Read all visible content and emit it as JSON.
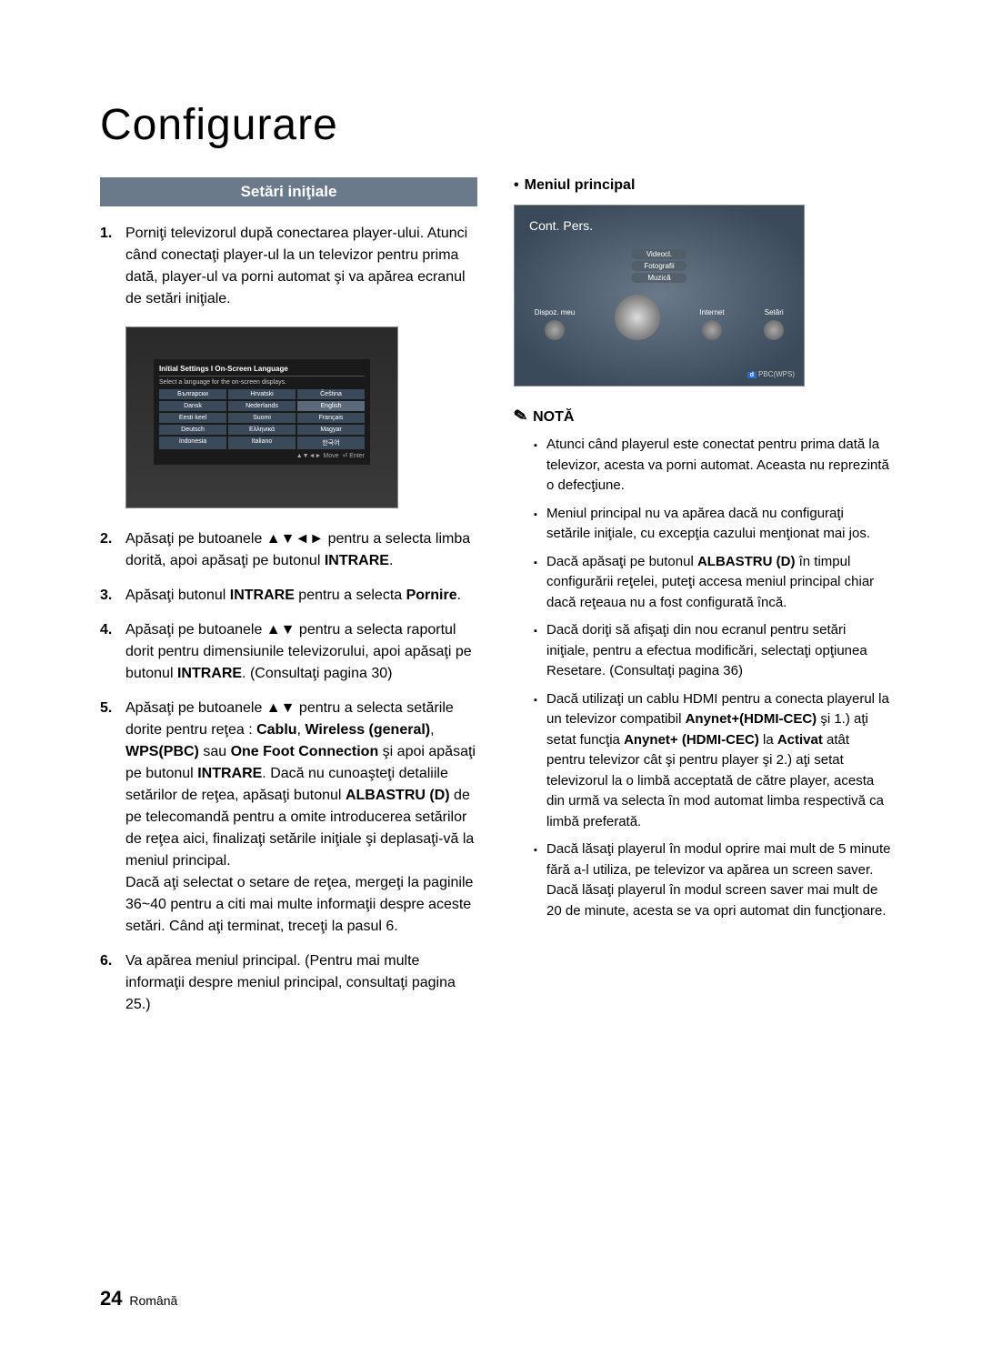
{
  "page": {
    "title": "Configurare",
    "number": "24",
    "language": "Română"
  },
  "section": {
    "heading": "Setări iniţiale"
  },
  "steps": {
    "s1": {
      "num": "1.",
      "text": "Porniţi televizorul după conectarea player-ului. Atunci când conectaţi player-ul la un televizor pentru prima dată, player-ul va porni automat şi va apărea ecranul de setări iniţiale."
    },
    "s2": {
      "num": "2.",
      "pre": "Apăsaţi pe butoanele ",
      "arrows": "▲▼◄►",
      "mid": " pentru a selecta limba dorită, apoi apăsaţi pe butonul ",
      "btn": "INTRARE",
      "post": "."
    },
    "s3": {
      "num": "3.",
      "pre": "Apăsaţi butonul ",
      "btn": "INTRARE",
      "mid": " pentru a selecta ",
      "opt": "Pornire",
      "post": "."
    },
    "s4": {
      "num": "4.",
      "pre": "Apăsaţi pe butoanele ",
      "arrows": "▲▼",
      "mid": " pentru a selecta raportul dorit pentru dimensiunile televizorului, apoi apăsaţi pe butonul ",
      "btn": "INTRARE",
      "post": ". (Consultaţi pagina 30)"
    },
    "s5": {
      "num": "5.",
      "pre": "Apăsaţi pe butoanele ",
      "arrows": "▲▼",
      "mid1": " pentru a selecta setările dorite pentru reţea : ",
      "opt1": "Cablu",
      "opt2": "Wireless (general)",
      "opt3": "WPS(PBC)",
      "or": " sau ",
      "opt4": "One Foot Connection",
      "mid2": " şi apoi apăsaţi pe butonul ",
      "btn1": "INTRARE",
      "mid3": ". Dacă nu cunoaşteţi detaliile setărilor de reţea, apăsaţi butonul ",
      "btn2": "ALBASTRU (D)",
      "mid4": " de pe telecomandă pentru a omite introducerea setărilor de reţea aici, finalizaţi setările iniţiale şi deplasaţi-vă la meniul principal.",
      "para2": "Dacă aţi selectat o setare de reţea, mergeţi la paginile 36~40 pentru a citi mai multe informaţii despre aceste setări. Când aţi terminat, treceţi la pasul 6."
    },
    "s6": {
      "num": "6.",
      "text": "Va apărea meniul principal. (Pentru mai multe informaţii despre meniul principal, consultaţi pagina 25.)"
    }
  },
  "screenshot1": {
    "title": "Initial Settings I On-Screen Language",
    "subtitle": "Select a language for the on-screen displays.",
    "langs": [
      "Български",
      "Hrvatski",
      "Čeština",
      "Dansk",
      "Nederlands",
      "English",
      "Eesti keel",
      "Suomi",
      "Français",
      "Deutsch",
      "Ελληνικά",
      "Magyar",
      "Indonesia",
      "Italiano",
      "한국어"
    ],
    "footer_move": "Move",
    "footer_enter": "Enter"
  },
  "right": {
    "heading": "Meniul principal"
  },
  "screenshot2": {
    "title": "Cont. Pers.",
    "top_items": [
      "Videocl.",
      "Fotografii",
      "Muzică"
    ],
    "row": {
      "i1": "Dispoz. meu",
      "i2": "Internet",
      "i3": "Setări"
    },
    "badge": "d",
    "bottom": "PBC(WPS)"
  },
  "nota": {
    "heading": "NOTĂ",
    "n1": "Atunci când playerul este conectat pentru prima dată la televizor, acesta va porni automat. Aceasta nu reprezintă o defecţiune.",
    "n2": "Meniul principal nu va apărea dacă nu configuraţi setările iniţiale, cu excepţia cazului menţionat mai jos.",
    "n3_pre": "Dacă apăsaţi pe butonul ",
    "n3_btn": "ALBASTRU (D)",
    "n3_post": " în timpul configurării reţelei, puteţi accesa meniul principal chiar dacă reţeaua nu a fost configurată încă.",
    "n4": "Dacă doriţi să afişaţi din nou ecranul pentru setări iniţiale, pentru a efectua modificări, selectaţi opţiunea Resetare. (Consultaţi pagina 36)",
    "n5_pre": "Dacă utilizaţi un cablu HDMI pentru a conecta playerul la un televizor compatibil ",
    "n5_b1": "Anynet+(HDMI-CEC)",
    "n5_mid1": " şi 1.) aţi setat funcţia ",
    "n5_b2": "Anynet+ (HDMI-CEC)",
    "n5_mid2": " la ",
    "n5_b3": "Activat",
    "n5_post": " atât pentru televizor cât şi pentru player şi 2.) aţi setat televizorul la o limbă acceptată de către player, acesta din urmă va selecta în mod automat limba respectivă ca limbă preferată.",
    "n6": "Dacă lăsaţi playerul în modul oprire mai mult de 5 minute fără a-l utiliza, pe televizor va apărea un screen saver. Dacă lăsaţi playerul în modul screen saver mai mult de 20 de minute, acesta se va opri automat din funcţionare."
  }
}
